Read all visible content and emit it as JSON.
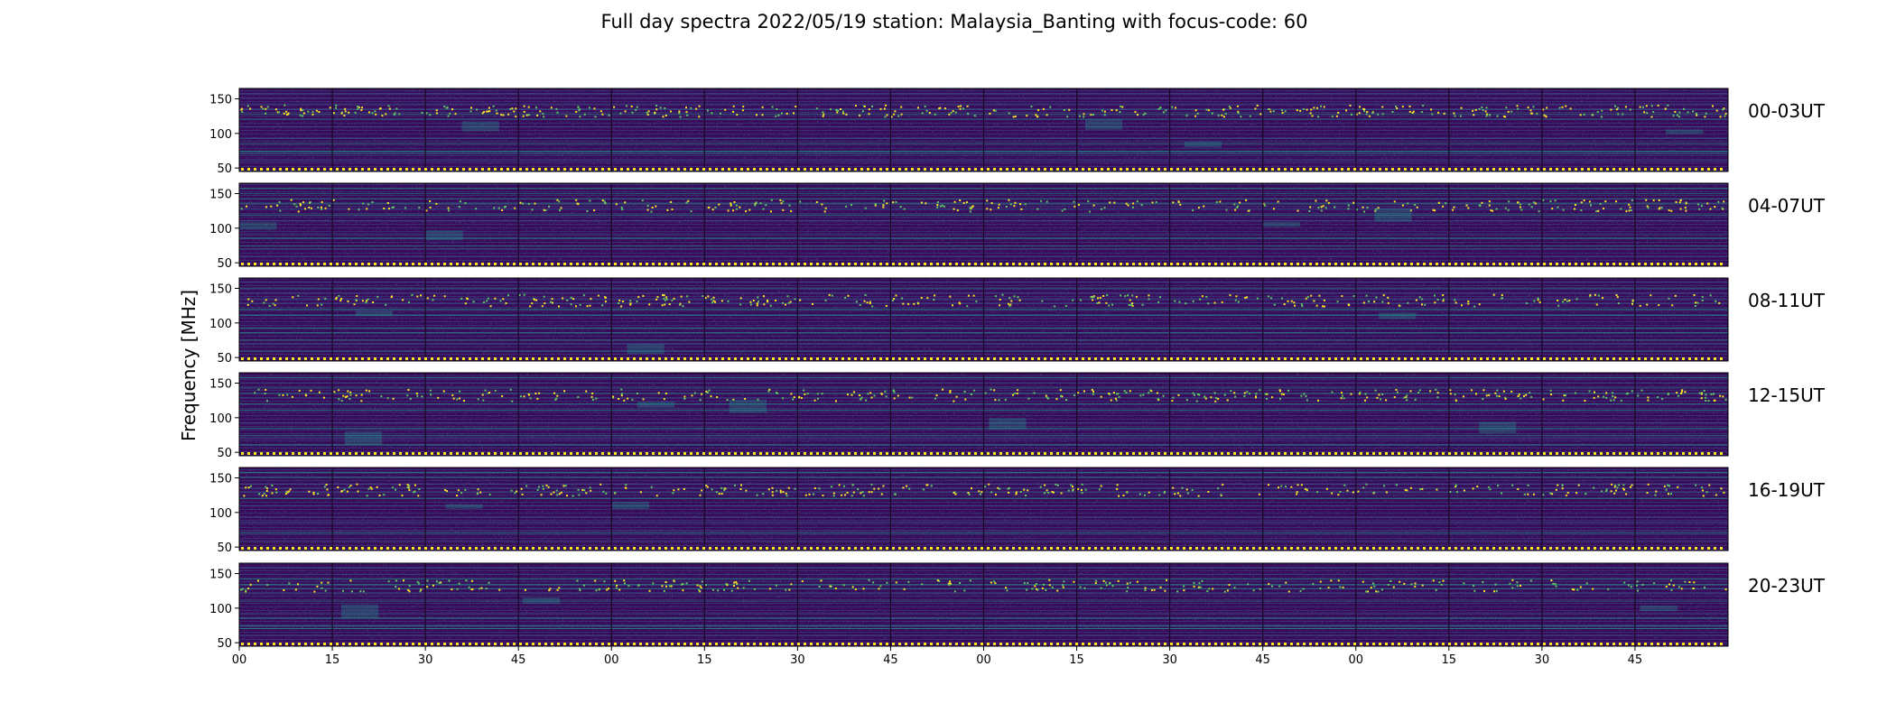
{
  "chart_data": {
    "type": "heatmap",
    "title": "Full day spectra 2022/05/19 station: Malaysia_Banting with focus-code: 60",
    "ylabel": "Frequency [MHz]",
    "xlabel": "",
    "panels": [
      {
        "label": "00-03UT",
        "hours": [
          0,
          1,
          2,
          3
        ]
      },
      {
        "label": "04-07UT",
        "hours": [
          4,
          5,
          6,
          7
        ]
      },
      {
        "label": "08-11UT",
        "hours": [
          8,
          9,
          10,
          11
        ]
      },
      {
        "label": "12-15UT",
        "hours": [
          12,
          13,
          14,
          15
        ]
      },
      {
        "label": "16-19UT",
        "hours": [
          16,
          17,
          18,
          19
        ]
      },
      {
        "label": "20-23UT",
        "hours": [
          20,
          21,
          22,
          23
        ]
      }
    ],
    "y_ticks": [
      50,
      100,
      150
    ],
    "ylim": [
      45,
      165
    ],
    "x_tick_labels": [
      "00",
      "15",
      "30",
      "45",
      "00",
      "15",
      "30",
      "45",
      "00",
      "15",
      "30",
      "45",
      "00",
      "15",
      "30",
      "45"
    ],
    "segments_per_panel": 16,
    "segment_minutes": 15,
    "colormap": [
      "#440154",
      "#3b528b",
      "#21918c",
      "#5ec962",
      "#fde725"
    ],
    "background_color": "#3a0a5a",
    "grid": false,
    "legend": "none"
  }
}
